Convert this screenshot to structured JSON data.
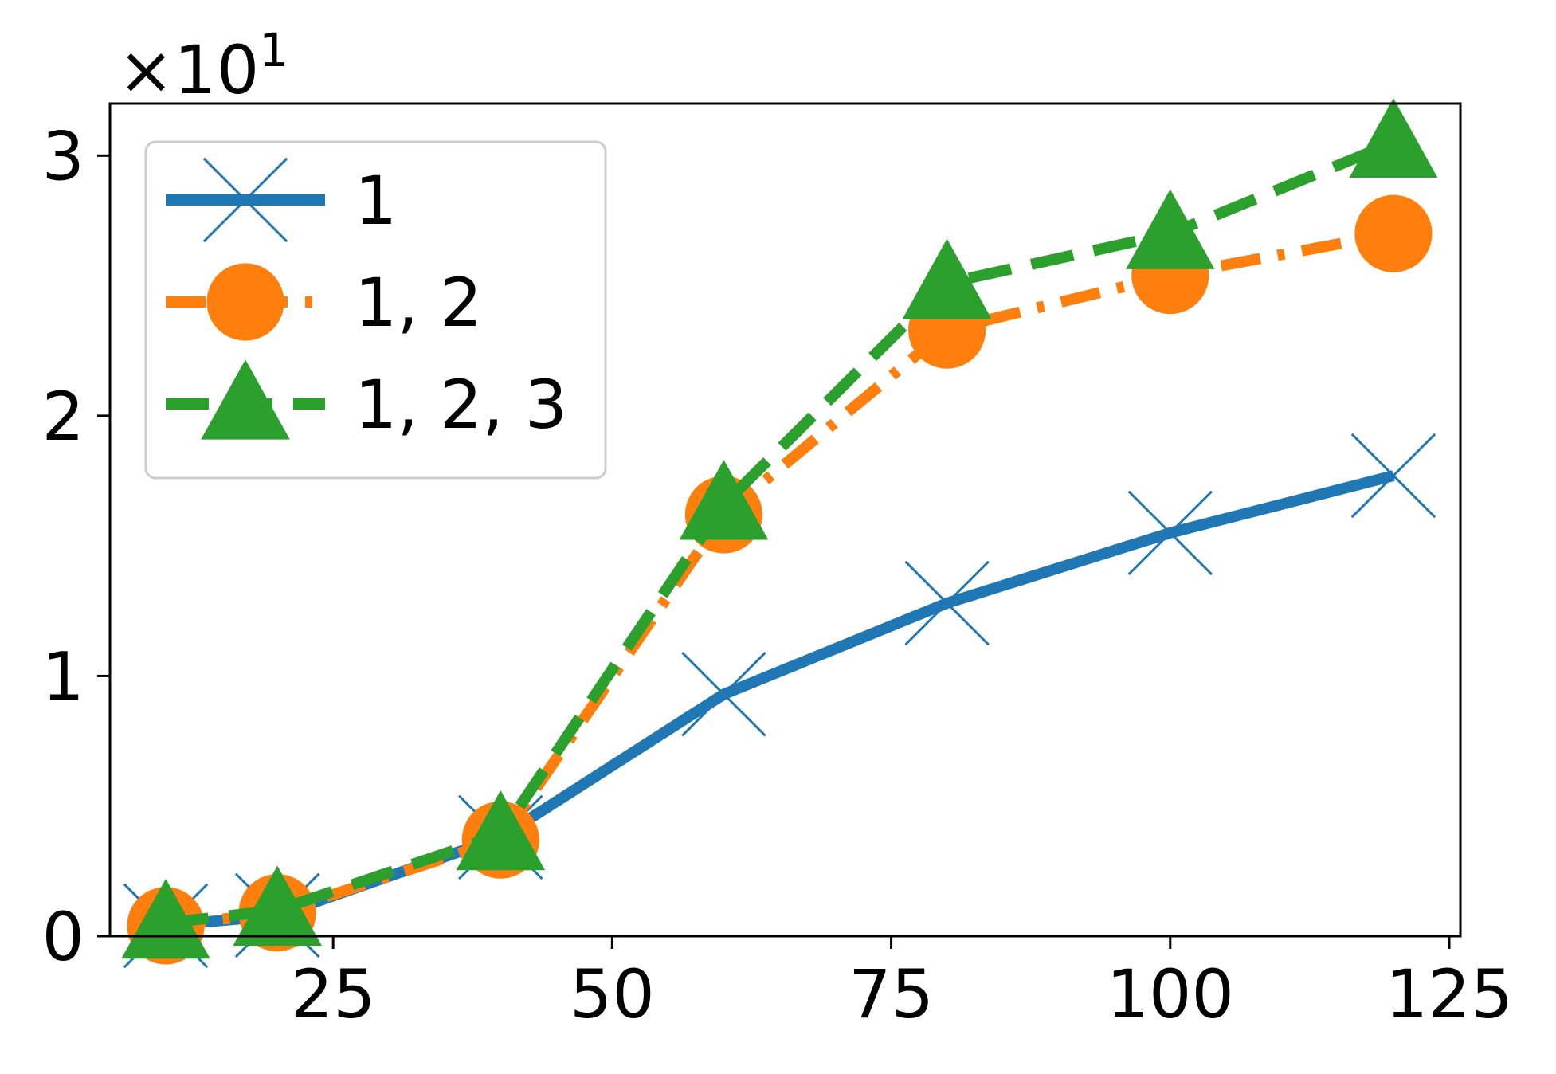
{
  "chart_data": {
    "type": "line",
    "title": "",
    "xlabel": "",
    "ylabel": "",
    "y_multiplier": {
      "base": "×10",
      "exponent": "1"
    },
    "xlim": [
      5,
      126
    ],
    "ylim": [
      0,
      3.2
    ],
    "x_ticks": [
      25,
      50,
      75,
      100,
      125
    ],
    "x_tick_labels": [
      "25",
      "50",
      "75",
      "100",
      "125"
    ],
    "y_ticks": [
      0,
      1,
      2,
      3
    ],
    "y_tick_labels": [
      "0",
      "1",
      "2",
      "3"
    ],
    "x": [
      10,
      20,
      40,
      60,
      80,
      100,
      120
    ],
    "series": [
      {
        "name": "1",
        "color": "#1f77b4",
        "marker": "x",
        "dash": "solid",
        "values": [
          0.04,
          0.08,
          0.38,
          0.93,
          1.28,
          1.55,
          1.77
        ]
      },
      {
        "name": "1, 2",
        "color": "#ff7f0e",
        "marker": "circle",
        "dash": "dashdot",
        "values": [
          0.04,
          0.09,
          0.37,
          1.62,
          2.33,
          2.54,
          2.7
        ]
      },
      {
        "name": "1, 2, 3",
        "color": "#2ca02c",
        "marker": "triangle",
        "dash": "dashed",
        "values": [
          0.05,
          0.1,
          0.39,
          1.66,
          2.51,
          2.7,
          3.05
        ]
      }
    ],
    "legend": {
      "position": "top-left"
    },
    "grid": false
  }
}
